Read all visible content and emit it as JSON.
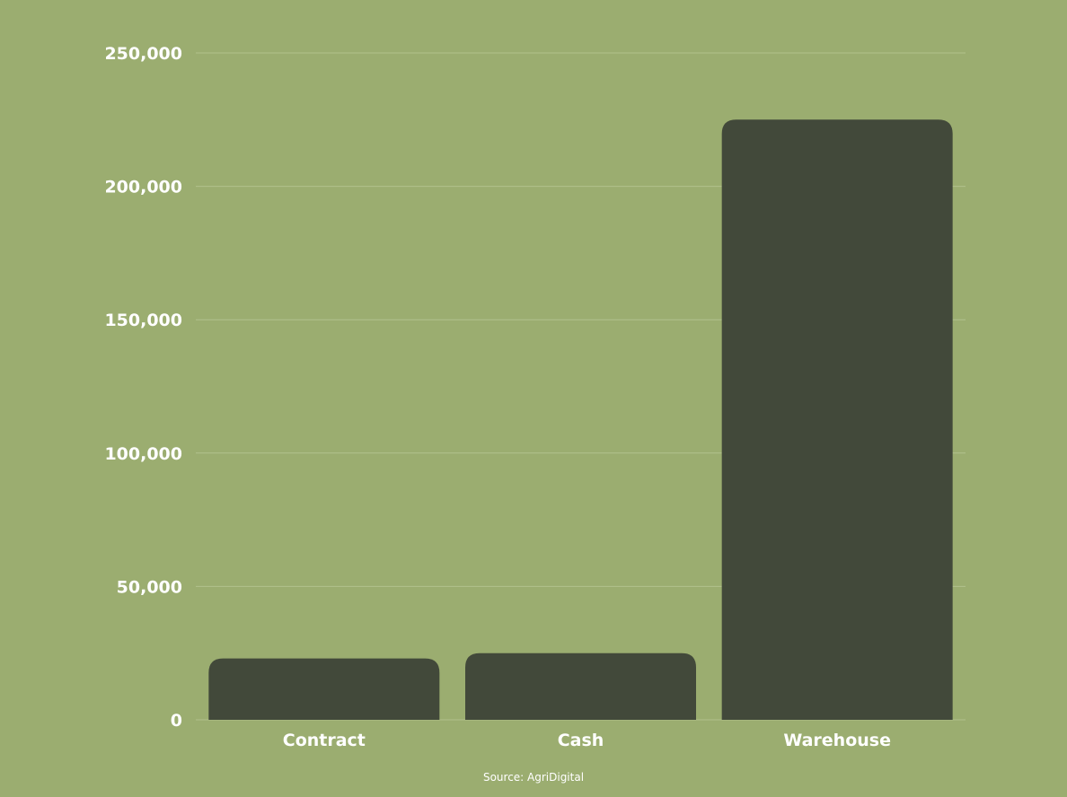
{
  "colors": {
    "background": "#9bad70",
    "bar": "#42493a",
    "grid": "#b2c18d",
    "text": "#ffffff"
  },
  "source": "Source: AgriDigital",
  "chart_data": {
    "type": "bar",
    "categories": [
      "Contract",
      "Cash",
      "Warehouse"
    ],
    "values": [
      23000,
      25000,
      225000
    ],
    "title": "",
    "xlabel": "",
    "ylabel": "",
    "ylim": [
      0,
      250000
    ],
    "yticks": [
      0,
      50000,
      100000,
      150000,
      200000,
      250000
    ],
    "ytick_labels": [
      "0",
      "50,000",
      "100,000",
      "150,000",
      "200,000",
      "250,000"
    ],
    "grid": true,
    "legend": "none"
  }
}
